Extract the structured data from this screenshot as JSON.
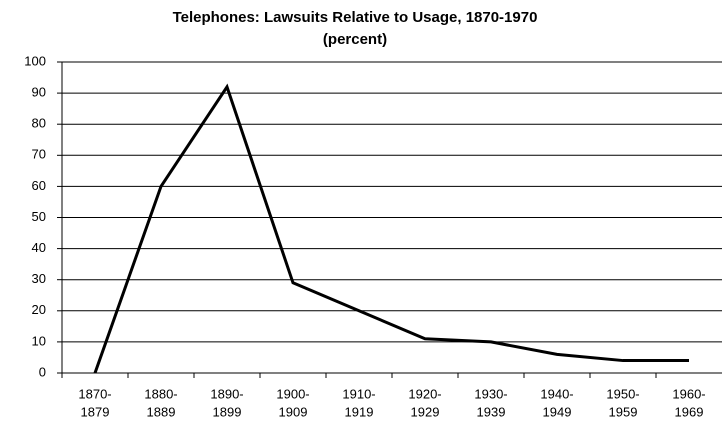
{
  "chart_data": {
    "type": "line",
    "title": "Telephones: Lawsuits Relative to Usage, 1870-1970",
    "subtitle": "(percent)",
    "categories": [
      [
        "1870-",
        "1879"
      ],
      [
        "1880-",
        "1889"
      ],
      [
        "1890-",
        "1899"
      ],
      [
        "1900-",
        "1909"
      ],
      [
        "1910-",
        "1919"
      ],
      [
        "1920-",
        "1929"
      ],
      [
        "1930-",
        "1939"
      ],
      [
        "1940-",
        "1949"
      ],
      [
        "1950-",
        "1959"
      ],
      [
        "1960-",
        "1969"
      ]
    ],
    "values": [
      0,
      60,
      92,
      29,
      20,
      11,
      10,
      6,
      4,
      4
    ],
    "color": "#000000",
    "ylim": [
      0,
      100
    ],
    "yticks": [
      0,
      10,
      20,
      30,
      40,
      50,
      60,
      70,
      80,
      90,
      100
    ],
    "grid": true
  }
}
